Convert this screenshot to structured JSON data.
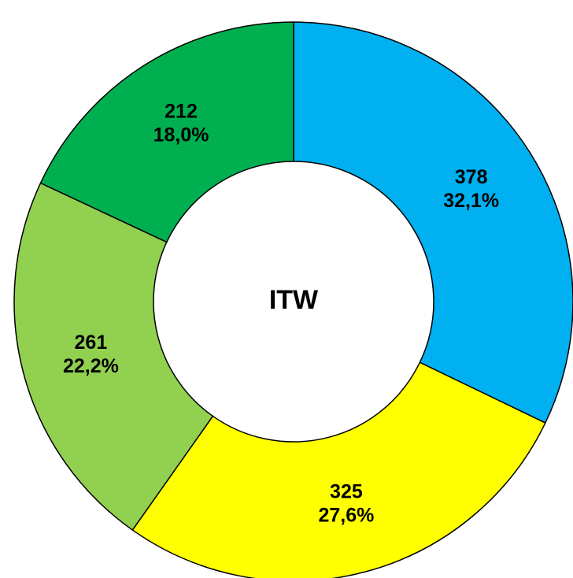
{
  "chart_data": {
    "type": "donut",
    "title": "ITW",
    "categories": [
      null,
      null,
      null,
      null
    ],
    "values": [
      378,
      325,
      261,
      212
    ],
    "percent_labels": [
      "32,1%",
      "27,6%",
      "22,2%",
      "18,0%"
    ],
    "colors": [
      "#00b0f0",
      "#ffff00",
      "#92d050",
      "#00b050"
    ]
  }
}
